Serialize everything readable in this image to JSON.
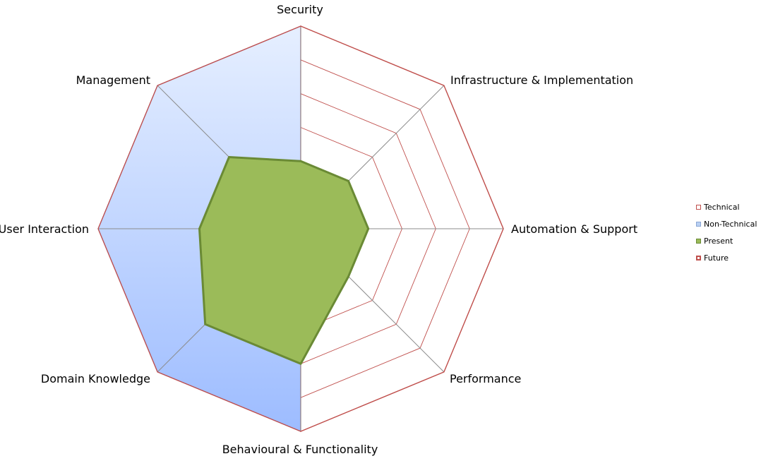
{
  "chart_data": {
    "type": "radar",
    "title": "",
    "categories": [
      "Security",
      "Infrastructure & Implementation",
      "Automation & Support",
      "Performance",
      "Behavioural & Functionality",
      "Domain Knowledge",
      "User Interaction",
      "Management"
    ],
    "rmax": 6,
    "rings": 6,
    "series": [
      {
        "name": "Technical",
        "values": [
          6,
          6,
          6,
          6,
          6,
          0,
          0,
          0
        ],
        "fill": "#ffffff",
        "stroke": "#c0504d"
      },
      {
        "name": "Non-Technical",
        "values": [
          6,
          0,
          0,
          0,
          6,
          6,
          6,
          6
        ],
        "fill": "#c6d9f1",
        "stroke": "#8064a2"
      },
      {
        "name": "Present",
        "values": [
          2,
          2,
          2,
          2,
          4,
          4,
          3,
          3
        ],
        "fill": "#9bbb59",
        "stroke": "#6a8a35"
      },
      {
        "name": "Future",
        "values": [
          6,
          6,
          6,
          6,
          6,
          6,
          6,
          6
        ],
        "fill": "none",
        "stroke": "#c0504d"
      }
    ],
    "legend_position": "right"
  }
}
